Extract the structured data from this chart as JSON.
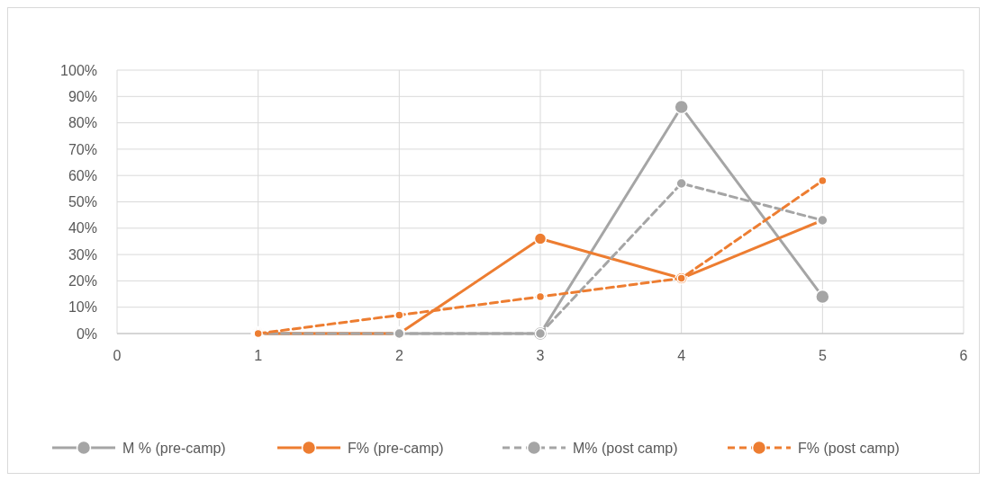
{
  "chart_data": {
    "type": "line",
    "x": [
      1,
      2,
      3,
      4,
      5
    ],
    "xlim": [
      0,
      6
    ],
    "xticks": [
      0,
      1,
      2,
      3,
      4,
      5,
      6
    ],
    "ylim": [
      0,
      100
    ],
    "yticks": [
      {
        "value": 0,
        "label": "0%"
      },
      {
        "value": 10,
        "label": "10%"
      },
      {
        "value": 20,
        "label": "20%"
      },
      {
        "value": 30,
        "label": "30%"
      },
      {
        "value": 40,
        "label": "40%"
      },
      {
        "value": 50,
        "label": "50%"
      },
      {
        "value": 60,
        "label": "60%"
      },
      {
        "value": 70,
        "label": "70%"
      },
      {
        "value": 80,
        "label": "80%"
      },
      {
        "value": 90,
        "label": "90%"
      },
      {
        "value": 100,
        "label": "100%"
      }
    ],
    "grid": true,
    "legend": "bottom",
    "marker": "circle",
    "series": [
      {
        "name": "M % (pre-camp)",
        "color": "#a5a5a5",
        "line_style": "solid",
        "values": [
          0,
          0,
          0,
          86,
          14
        ]
      },
      {
        "name": "F% (pre-camp)",
        "color": "#ed7d31",
        "line_style": "solid",
        "values": [
          0,
          0,
          36,
          21,
          43
        ]
      },
      {
        "name": "M% (post camp)",
        "color": "#a5a5a5",
        "line_style": "dashed",
        "values": [
          0,
          0,
          0,
          57,
          43
        ]
      },
      {
        "name": "F% (post camp)",
        "color": "#ed7d31",
        "line_style": "dashed",
        "values": [
          0,
          7,
          14,
          21,
          58
        ]
      }
    ]
  }
}
